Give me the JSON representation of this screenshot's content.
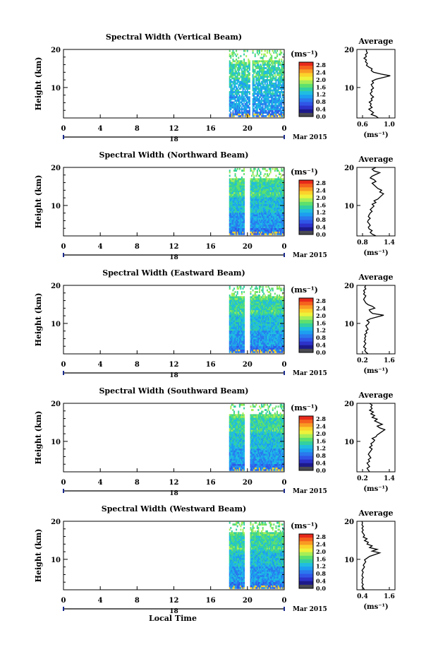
{
  "colorbar": {
    "unit_label": "(ms⁻¹)",
    "ticks": [
      "2.8",
      "2.4",
      "2.0",
      "1.6",
      "1.2",
      "0.8",
      "0.4",
      "0.0"
    ],
    "colors": [
      "#e8291b",
      "#f5621e",
      "#f99b24",
      "#fbd22b",
      "#eef23a",
      "#a8ee56",
      "#5ee06e",
      "#33d0a0",
      "#20bde0",
      "#1d9ef0",
      "#2a78ee",
      "#2f55e6",
      "#2d32c9",
      "#1d1a8c",
      "#4a4a52"
    ]
  },
  "common": {
    "ylabel": "Height (km)",
    "yticks": [
      "20",
      "10"
    ],
    "xticks": [
      "0",
      "4",
      "8",
      "12",
      "16",
      "20",
      "0"
    ],
    "date_day": "18",
    "date_label": "Mar 2015",
    "avg_title": "Average",
    "avg_unit": "(ms⁻¹)",
    "xlabel": "Local Time"
  },
  "chart_data": [
    {
      "type": "heatmap",
      "title": "Spectral Width (Vertical Beam)",
      "xlim": [
        0,
        24
      ],
      "ylim": [
        2,
        20
      ],
      "data_start_hour": 18,
      "data_end_hour": 24,
      "gap_hours": [],
      "avg_xticks": [
        "0.6",
        "1.0"
      ],
      "avg_xlim": [
        0.4,
        1.2
      ],
      "avg_profile": [
        0.85,
        0.8,
        0.7,
        0.75,
        0.7,
        0.65,
        0.72,
        0.68,
        0.7,
        0.66,
        0.72,
        0.7,
        0.75,
        0.7,
        0.68,
        0.72,
        0.7,
        0.75,
        0.72,
        0.7,
        0.75,
        0.72,
        0.8,
        0.95,
        1.1,
        0.9,
        0.75,
        0.7,
        0.72,
        0.65,
        0.6,
        0.62,
        0.58,
        0.6,
        0.55,
        0.6,
        0.58,
        0.62,
        0.6,
        0.6
      ]
    },
    {
      "type": "heatmap",
      "title": "Spectral Width (Northward Beam)",
      "xlim": [
        0,
        24
      ],
      "ylim": [
        2,
        20
      ],
      "data_start_hour": 18,
      "data_end_hour": 24,
      "gap_hours": [
        19.6,
        20.2
      ],
      "avg_xticks": [
        "0.8",
        "1.4"
      ],
      "avg_xlim": [
        0.6,
        1.6
      ],
      "avg_profile": [
        1.1,
        1.0,
        0.95,
        1.0,
        0.92,
        0.9,
        0.95,
        0.92,
        0.88,
        0.9,
        0.95,
        0.9,
        0.92,
        0.95,
        1.0,
        0.95,
        1.0,
        1.05,
        1.0,
        1.1,
        1.05,
        1.15,
        1.2,
        1.25,
        1.3,
        1.2,
        1.25,
        1.15,
        1.1,
        1.05,
        1.0,
        1.1,
        1.05,
        0.95,
        1.0,
        1.1,
        1.2,
        1.05,
        1.0,
        1.1
      ]
    },
    {
      "type": "heatmap",
      "title": "Spectral Width (Eastward Beam)",
      "xlim": [
        0,
        24
      ],
      "ylim": [
        2,
        20
      ],
      "data_start_hour": 18,
      "data_end_hour": 24,
      "gap_hours": [
        19.6,
        20.2
      ],
      "avg_xticks": [
        "0.2",
        "1.6"
      ],
      "avg_xlim": [
        0.1,
        1.8
      ],
      "avg_profile": [
        0.6,
        0.5,
        0.45,
        0.5,
        0.4,
        0.45,
        0.5,
        0.42,
        0.48,
        0.45,
        0.5,
        0.45,
        0.55,
        0.5,
        0.6,
        0.55,
        0.5,
        0.6,
        0.65,
        0.55,
        0.7,
        1.0,
        1.3,
        0.8,
        0.7,
        0.65,
        0.9,
        0.8,
        0.6,
        0.5,
        0.45,
        0.4,
        0.45,
        0.5,
        0.4,
        0.45,
        0.4,
        0.5,
        0.45,
        0.5
      ]
    },
    {
      "type": "heatmap",
      "title": "Spectral Width (Southward Beam)",
      "xlim": [
        0,
        24
      ],
      "ylim": [
        2,
        20
      ],
      "data_start_hour": 18,
      "data_end_hour": 24,
      "gap_hours": [
        19.6,
        20.2
      ],
      "avg_xticks": [
        "0.2",
        "1.4"
      ],
      "avg_xlim": [
        0.1,
        1.6
      ],
      "avg_profile": [
        0.6,
        0.55,
        0.5,
        0.6,
        0.55,
        0.5,
        0.6,
        0.55,
        0.65,
        0.6,
        0.55,
        0.6,
        0.65,
        0.7,
        0.6,
        0.7,
        0.65,
        0.75,
        0.8,
        0.7,
        0.85,
        0.9,
        1.0,
        1.1,
        1.2,
        1.0,
        0.9,
        1.1,
        0.95,
        0.8,
        0.9,
        0.7,
        0.8,
        0.65,
        0.75,
        0.6,
        0.7,
        0.65,
        0.7,
        0.6
      ]
    },
    {
      "type": "heatmap",
      "title": "Spectral Width (Westward Beam)",
      "xlim": [
        0,
        24
      ],
      "ylim": [
        2,
        20
      ],
      "data_start_hour": 18,
      "data_end_hour": 24,
      "gap_hours": [
        19.6,
        20.2
      ],
      "avg_xticks": [
        "0.4",
        "1.6"
      ],
      "avg_xlim": [
        0.3,
        1.8
      ],
      "avg_profile": [
        0.6,
        0.55,
        0.5,
        0.55,
        0.5,
        0.52,
        0.5,
        0.55,
        0.5,
        0.52,
        0.55,
        0.5,
        0.55,
        0.6,
        0.55,
        0.6,
        0.65,
        0.6,
        0.7,
        0.8,
        1.0,
        1.2,
        0.9,
        1.1,
        0.8,
        0.9,
        0.7,
        0.75,
        0.6,
        0.7,
        0.55,
        0.6,
        0.55,
        0.5,
        0.55,
        0.5,
        0.55,
        0.5,
        0.52,
        0.5
      ]
    }
  ]
}
